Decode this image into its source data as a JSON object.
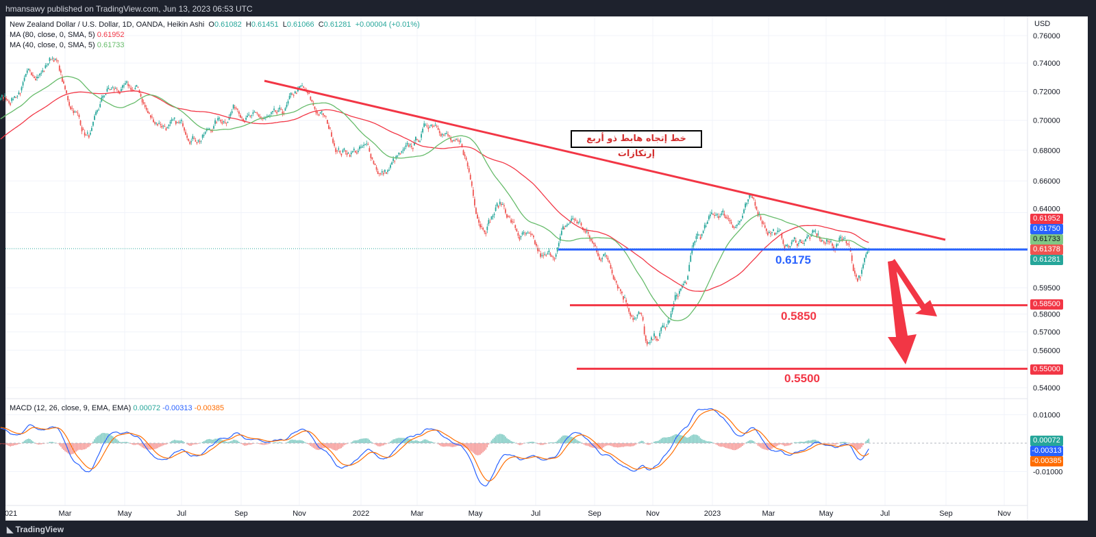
{
  "header": {
    "published": "hmansawy published on TradingView.com, Jun 13, 2023 06:53 UTC"
  },
  "legend": {
    "symbol": "New Zealand Dollar / U.S. Dollar, 1D, OANDA, Heikin Ashi",
    "o_label": "O",
    "o": "0.61082",
    "h_label": "H",
    "h": "0.61451",
    "l_label": "L",
    "l": "0.61066",
    "c_label": "C",
    "c": "0.61281",
    "change": "+0.00004 (+0.01%)",
    "ma80": "MA (80, close, 0, SMA, 5)",
    "ma80_val": "0.61952",
    "ma40": "MA (40, close, 0, SMA, 5)",
    "ma40_val": "0.61733",
    "macd": "MACD (12, 26, close, 9, EMA, EMA)",
    "macd_hist": "0.00072",
    "macd_line": "-0.00313",
    "macd_signal": "-0.00385"
  },
  "annotations": {
    "trend_text": "خط إتجاه هابط ذو أربع إرتكازات",
    "lvl1": "0.6175",
    "lvl2": "0.5850",
    "lvl3": "0.5500"
  },
  "badges": {
    "ma80": "0.61952",
    "level": "0.61750",
    "ma40": "0.61733",
    "prev": "0.61378",
    "last": "0.61281",
    "s1": "0.58500",
    "s2": "0.55000",
    "macd_hist": "0.00072",
    "macd_line": "-0.00313",
    "macd_signal": "-0.00385"
  },
  "colors": {
    "up": "#26a69a",
    "down": "#ef5350",
    "ma80": "#f23645",
    "ma40": "#66bb6a",
    "level": "#2962ff",
    "annot": "#f23645"
  },
  "footer": {
    "brand": "TradingView"
  },
  "chart_data": {
    "type": "candlestick",
    "title": "NZDUSD 1D Heikin Ashi",
    "currency": "USD",
    "scale": "log",
    "ylim": [
      0.54,
      0.76
    ],
    "yticks": [
      "0.76000",
      "0.74000",
      "0.72000",
      "0.70000",
      "0.68000",
      "0.66000",
      "0.64000",
      "0.59500",
      "0.58000",
      "0.57000",
      "0.56000",
      "0.54000"
    ],
    "xticks": [
      "021",
      "Mar",
      "May",
      "Jul",
      "Sep",
      "Nov",
      "2022",
      "Mar",
      "May",
      "Jul",
      "Sep",
      "Nov",
      "2023",
      "Mar",
      "May",
      "Jul",
      "Sep",
      "Nov"
    ],
    "macd_yticks": [
      "0.01000",
      "-0.01000"
    ],
    "price_keypoints_month_value": [
      [
        -4,
        0.655
      ],
      [
        -2,
        0.69
      ],
      [
        0,
        0.715
      ],
      [
        1.2,
        0.735
      ],
      [
        1.6,
        0.745
      ],
      [
        2.2,
        0.71
      ],
      [
        2.8,
        0.69
      ],
      [
        3.5,
        0.72
      ],
      [
        4.4,
        0.72
      ],
      [
        5,
        0.7
      ],
      [
        5.8,
        0.695
      ],
      [
        6.6,
        0.69
      ],
      [
        7.3,
        0.7
      ],
      [
        7.8,
        0.71
      ],
      [
        8.5,
        0.7
      ],
      [
        9.2,
        0.7
      ],
      [
        10,
        0.72
      ],
      [
        10.6,
        0.705
      ],
      [
        11.4,
        0.68
      ],
      [
        12.2,
        0.68
      ],
      [
        12.8,
        0.665
      ],
      [
        13.4,
        0.675
      ],
      [
        14.6,
        0.7
      ],
      [
        15.4,
        0.68
      ],
      [
        16.2,
        0.635
      ],
      [
        16.8,
        0.645
      ],
      [
        17.5,
        0.625
      ],
      [
        18.3,
        0.61
      ],
      [
        19.3,
        0.635
      ],
      [
        20.2,
        0.615
      ],
      [
        21.5,
        0.58
      ],
      [
        21.8,
        0.56
      ],
      [
        22.3,
        0.57
      ],
      [
        23,
        0.595
      ],
      [
        23.5,
        0.625
      ],
      [
        24.2,
        0.64
      ],
      [
        24.8,
        0.635
      ],
      [
        25.3,
        0.645
      ],
      [
        26,
        0.63
      ],
      [
        26.5,
        0.62
      ],
      [
        27.3,
        0.625
      ],
      [
        28,
        0.62
      ],
      [
        28.5,
        0.625
      ],
      [
        28.9,
        0.603
      ],
      [
        29.3,
        0.613
      ]
    ],
    "levels": [
      0.6175,
      0.585,
      0.55
    ],
    "trendline": [
      [
        0.4,
        0.729
      ],
      [
        17.4,
        0.625
      ]
    ]
  }
}
